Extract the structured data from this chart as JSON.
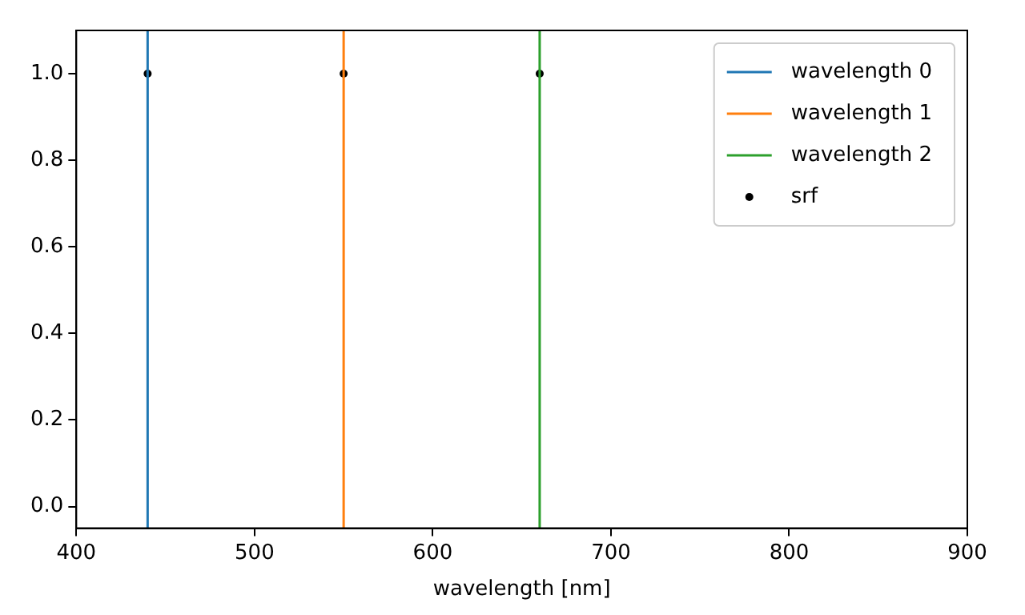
{
  "chart_data": {
    "type": "line",
    "xlabel": "wavelength [nm]",
    "xlim": [
      400,
      900
    ],
    "xticks": [
      400,
      500,
      600,
      700,
      800,
      900
    ],
    "ylim": [
      -0.05,
      1.1
    ],
    "yticks": [
      {
        "value": 0,
        "label": "0.0"
      },
      {
        "value": 0.2,
        "label": "0.2"
      },
      {
        "value": 0.4,
        "label": "0.4"
      },
      {
        "value": 0.6,
        "label": "0.6"
      },
      {
        "value": 0.8,
        "label": "0.8"
      },
      {
        "value": 1,
        "label": "1.0"
      }
    ],
    "grid": false,
    "legend": "top right",
    "series": [
      {
        "name": "wavelength 0",
        "color": "#1f77b4",
        "type": "line",
        "marker": "none",
        "x": [
          440,
          440
        ],
        "values": [
          -0.05,
          1.1
        ]
      },
      {
        "name": "wavelength 1",
        "color": "#ff7f0e",
        "type": "line",
        "marker": "none",
        "x": [
          550,
          550
        ],
        "values": [
          -0.05,
          1.1
        ]
      },
      {
        "name": "wavelength 2",
        "color": "#2ca02c",
        "type": "line",
        "marker": "none",
        "x": [
          660,
          660
        ],
        "values": [
          -0.05,
          1.1
        ]
      },
      {
        "name": "srf",
        "color": "#000000",
        "type": "scatter",
        "marker": "circle",
        "x": [
          440,
          550,
          660
        ],
        "values": [
          1,
          1,
          1
        ]
      }
    ]
  }
}
